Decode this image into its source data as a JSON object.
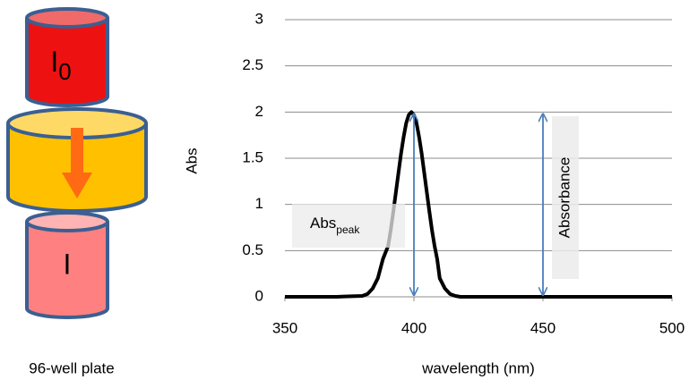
{
  "diagram": {
    "incident_label": "I",
    "incident_subscript": "0",
    "transmitted_label": "I",
    "plate_label": "96-well plate"
  },
  "chart_data": {
    "type": "line",
    "x_label": "wavelength (nm)",
    "y_label": "Abs",
    "x": [
      350,
      360,
      370,
      380,
      382,
      384,
      386,
      388,
      390,
      391,
      392,
      393,
      394,
      395,
      396,
      397,
      398,
      399,
      400,
      401,
      402,
      403,
      404,
      405,
      406,
      407,
      408,
      409,
      410,
      412,
      414,
      416,
      418,
      420,
      430,
      440,
      450,
      460,
      470,
      480,
      490,
      500
    ],
    "series": [
      {
        "color": "#000000",
        "values": [
          0,
          0,
          0,
          0.01,
          0.03,
          0.09,
          0.2,
          0.41,
          0.55,
          0.72,
          0.92,
          1.13,
          1.34,
          1.55,
          1.73,
          1.88,
          1.97,
          2,
          1.97,
          1.88,
          1.73,
          1.55,
          1.34,
          1.13,
          0.92,
          0.72,
          0.55,
          0.41,
          0.2,
          0.09,
          0.03,
          0.01,
          0,
          0,
          0,
          0,
          0,
          0,
          0,
          0,
          0,
          0
        ]
      }
    ],
    "xlim": [
      350,
      500
    ],
    "xticks": [
      350,
      400,
      450,
      500
    ],
    "ylim": [
      0,
      3
    ],
    "yticks": [
      0,
      0.5,
      1,
      1.5,
      2,
      2.5,
      3
    ],
    "grid": true,
    "annotations": [
      {
        "text": "Abs",
        "subscript": "peak",
        "x": 400
      },
      {
        "text": "Absorbance",
        "x": 450
      }
    ],
    "arrow_color": "#4a7ebb"
  }
}
